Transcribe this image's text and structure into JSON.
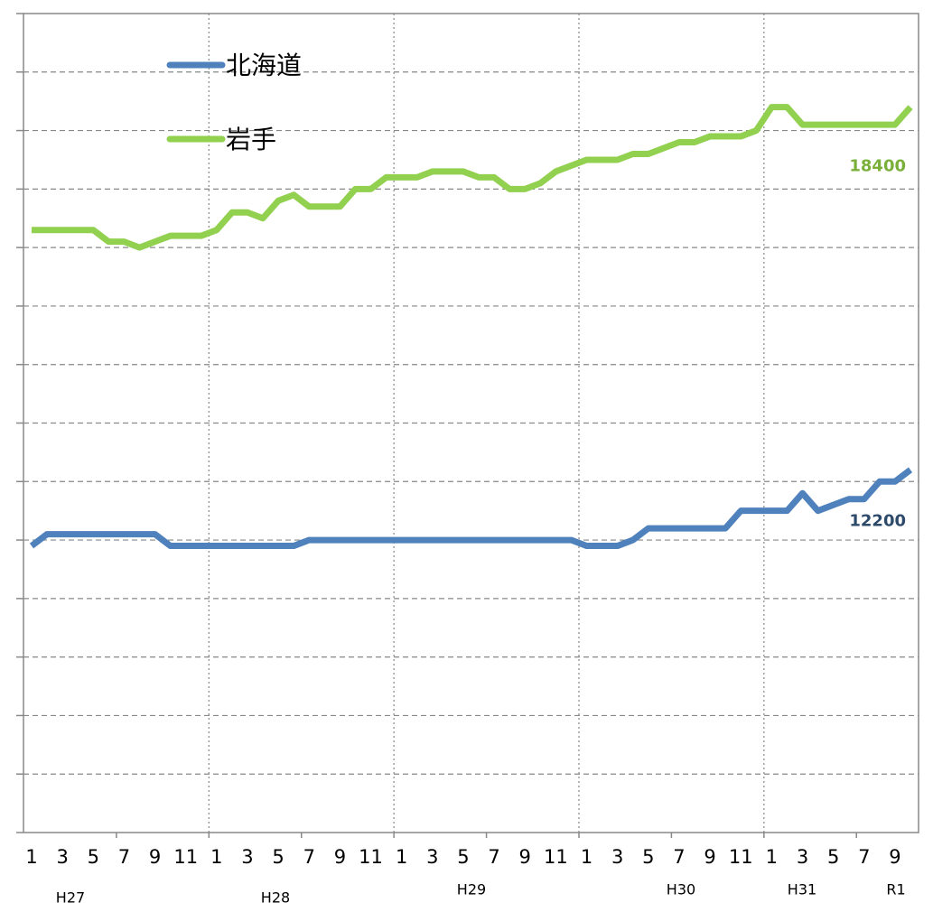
{
  "chart_data": {
    "type": "line",
    "categories": [
      "1",
      null,
      "3",
      null,
      "5",
      null,
      "7",
      null,
      "9",
      null,
      "11",
      null,
      "1",
      null,
      "3",
      null,
      "5",
      null,
      "7",
      null,
      "9",
      null,
      "11",
      null,
      "1",
      null,
      "3",
      null,
      "5",
      null,
      "7",
      null,
      "9",
      null,
      "11",
      null,
      "1",
      null,
      "3",
      null,
      "5",
      null,
      "7",
      null,
      "9",
      null,
      "11",
      null,
      "1",
      null,
      "3",
      null,
      "5",
      null,
      "7",
      null,
      "9",
      null
    ],
    "year_labels": [
      "H27",
      "H28",
      "H29",
      "H30",
      "H31",
      "R1"
    ],
    "series": [
      {
        "name": "北海道",
        "color": "#4f81bd",
        "label_color": "#2e4a6b",
        "values": [
          10900,
          11100,
          11100,
          11100,
          11100,
          11100,
          11100,
          11100,
          11100,
          10900,
          10900,
          10900,
          10900,
          10900,
          10900,
          10900,
          10900,
          10900,
          11000,
          11000,
          11000,
          11000,
          11000,
          11000,
          11000,
          11000,
          11000,
          11000,
          11000,
          11000,
          11000,
          11000,
          11000,
          11000,
          11000,
          11000,
          10900,
          10900,
          10900,
          11000,
          11200,
          11200,
          11200,
          11200,
          11200,
          11200,
          11500,
          11500,
          11500,
          11500,
          11800,
          11500,
          11600,
          11700,
          11700,
          12000,
          12000,
          12200
        ]
      },
      {
        "name": "岩手",
        "color": "#92d050",
        "label_color": "#7ab03a",
        "values": [
          16300,
          16300,
          16300,
          16300,
          16300,
          16100,
          16100,
          16000,
          16100,
          16200,
          16200,
          16200,
          16300,
          16600,
          16600,
          16500,
          16800,
          16900,
          16700,
          16700,
          16700,
          17000,
          17000,
          17200,
          17200,
          17200,
          17300,
          17300,
          17300,
          17200,
          17200,
          17000,
          17000,
          17100,
          17300,
          17400,
          17500,
          17500,
          17500,
          17600,
          17600,
          17700,
          17800,
          17800,
          17900,
          17900,
          17900,
          18000,
          18400,
          18400,
          18100,
          18100,
          18100,
          18100,
          18100,
          18100,
          18100,
          18400
        ]
      }
    ],
    "ylim": [
      6000,
      20000
    ],
    "yticks": [
      6000,
      7000,
      8000,
      9000,
      10000,
      11000,
      12000,
      13000,
      14000,
      15000,
      16000,
      17000,
      18000,
      19000,
      20000
    ],
    "grid": true,
    "legend": "upper left"
  }
}
